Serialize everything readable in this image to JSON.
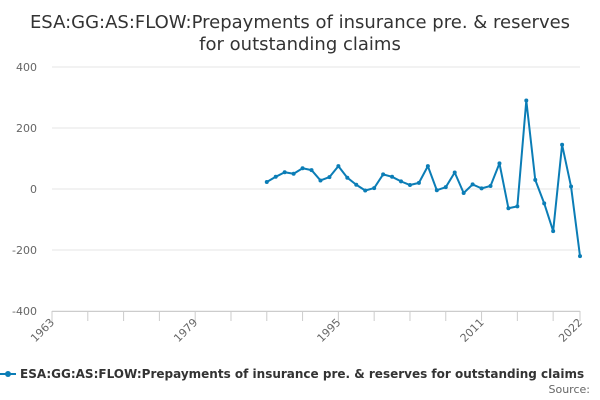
{
  "chart_data": {
    "type": "line",
    "title_lines": [
      "ESA:GG:AS:FLOW:Prepayments of insurance pre. & reserves",
      "for outstanding claims"
    ],
    "xlabel": "",
    "ylabel": "",
    "x_ticks": [
      "1963",
      "1979",
      "1995",
      "2011",
      "2022"
    ],
    "y_ticks": [
      "400",
      "200",
      "0",
      "-200",
      "-400"
    ],
    "xlim": [
      1963,
      2022
    ],
    "ylim": [
      -400,
      400
    ],
    "grid": true,
    "legend_position": "bottom",
    "color": "#0b7db6",
    "series": [
      {
        "name": "ESA:GG:AS:FLOW:Prepayments of insurance pre. & reserves for outstanding claims",
        "x": [
          1987,
          1988,
          1989,
          1990,
          1991,
          1992,
          1993,
          1994,
          1995,
          1996,
          1997,
          1998,
          1999,
          2000,
          2001,
          2002,
          2003,
          2004,
          2005,
          2006,
          2007,
          2008,
          2009,
          2010,
          2011,
          2012,
          2013,
          2014,
          2015,
          2016,
          2017,
          2018,
          2019,
          2020,
          2021,
          2022
        ],
        "values": [
          23,
          40,
          55,
          50,
          68,
          62,
          28,
          39,
          75,
          37,
          14,
          -5,
          3,
          48,
          40,
          25,
          13,
          20,
          75,
          -4,
          6,
          54,
          -13,
          15,
          2,
          10,
          84,
          -63,
          -57,
          290,
          30,
          -47,
          -138,
          145,
          8,
          -220
        ]
      }
    ]
  },
  "legend": {
    "label": "ESA:GG:AS:FLOW:Prepayments of insurance pre. & reserves for outstanding claims"
  },
  "credits": {
    "label": "Source:"
  }
}
